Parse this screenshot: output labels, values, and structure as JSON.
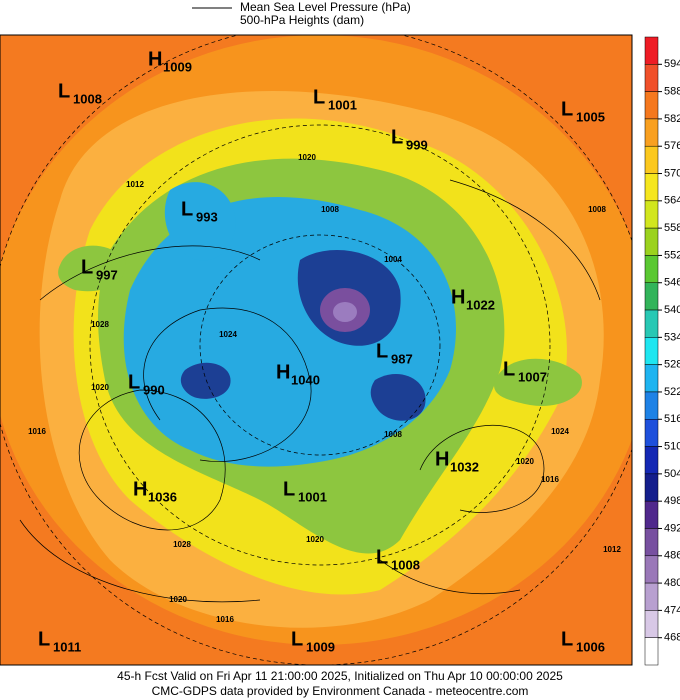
{
  "header": {
    "legend": [
      "Mean Sea Level Pressure (hPa)",
      "500-hPa Heights (dam)"
    ]
  },
  "colorbar": {
    "ticks": [
      594,
      588,
      582,
      576,
      570,
      564,
      558,
      552,
      546,
      540,
      534,
      528,
      522,
      516,
      510,
      504,
      498,
      492,
      486,
      480,
      474,
      468
    ],
    "colors": [
      "#ee1c25",
      "#f0502a",
      "#f5781e",
      "#f9a020",
      "#fbc81e",
      "#f5e61e",
      "#d2e61e",
      "#9bd21e",
      "#5ac832",
      "#32b45a",
      "#28c8b4",
      "#1ee6f0",
      "#1eb4f0",
      "#1e82e6",
      "#1e50dc",
      "#1428b4",
      "#141e8c",
      "#50288c",
      "#7850a0",
      "#9a78b8",
      "#b8a0d0",
      "#d8c8e6",
      "#ffffff"
    ]
  },
  "centers": [
    {
      "letter": "H",
      "value": 1009
    },
    {
      "letter": "L",
      "value": 1008
    },
    {
      "letter": "L",
      "value": 1001
    },
    {
      "letter": "L",
      "value": 1005
    },
    {
      "letter": "L",
      "value": 999
    },
    {
      "letter": "L",
      "value": 993
    },
    {
      "letter": "L",
      "value": 997
    },
    {
      "letter": "H",
      "value": 1022
    },
    {
      "letter": "L",
      "value": 987
    },
    {
      "letter": "L",
      "value": 1007
    },
    {
      "letter": "L",
      "value": 990
    },
    {
      "letter": "H",
      "value": 1040
    },
    {
      "letter": "H",
      "value": 1032
    },
    {
      "letter": "H",
      "value": 1036
    },
    {
      "letter": "L",
      "value": 1001
    },
    {
      "letter": "L",
      "value": 1008
    },
    {
      "letter": "L",
      "value": 1011
    },
    {
      "letter": "L",
      "value": 1009
    },
    {
      "letter": "L",
      "value": 1006
    }
  ],
  "isobar_labels": [
    1020,
    1012,
    1008,
    1004,
    1028,
    1024,
    1020,
    1016,
    1024,
    1020,
    1016,
    1028,
    1020,
    1016,
    1012,
    1008,
    1020,
    1008
  ],
  "footer": [
    "45-h Fcst Valid on Fri Apr 11 21:00:00 2025, Initialized on Thu Apr 10 00:00:00 2025",
    "CMC-GDPS data provided by Environment Canada - meteocentre.com"
  ]
}
